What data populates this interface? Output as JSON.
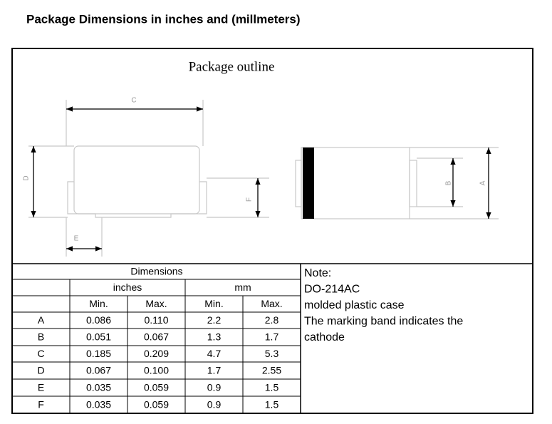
{
  "header": {
    "title": "Package Dimensions in inches and (millmeters)"
  },
  "drawing": {
    "title": "Package outline",
    "labels": [
      "C",
      "D",
      "F",
      "E",
      "B",
      "A"
    ]
  },
  "table": {
    "title": "Dimensions",
    "units": [
      "inches",
      "mm"
    ],
    "subheaders": [
      "Min.",
      "Max.",
      "Min.",
      "Max."
    ],
    "rows": [
      [
        "A",
        "0.086",
        "0.110",
        "2.2",
        "2.8"
      ],
      [
        "B",
        "0.051",
        "0.067",
        "1.3",
        "1.7"
      ],
      [
        "C",
        "0.185",
        "0.209",
        "4.7",
        "5.3"
      ],
      [
        "D",
        "0.067",
        "0.100",
        "1.7",
        "2.55"
      ],
      [
        "E",
        "0.035",
        "0.059",
        "0.9",
        "1.5"
      ],
      [
        "F",
        "0.035",
        "0.059",
        "0.9",
        "1.5"
      ]
    ]
  },
  "note": {
    "lines": [
      "Note:",
      "DO-214AC",
      "molded plastic case",
      "The marking band indicates the",
      "cathode"
    ]
  }
}
